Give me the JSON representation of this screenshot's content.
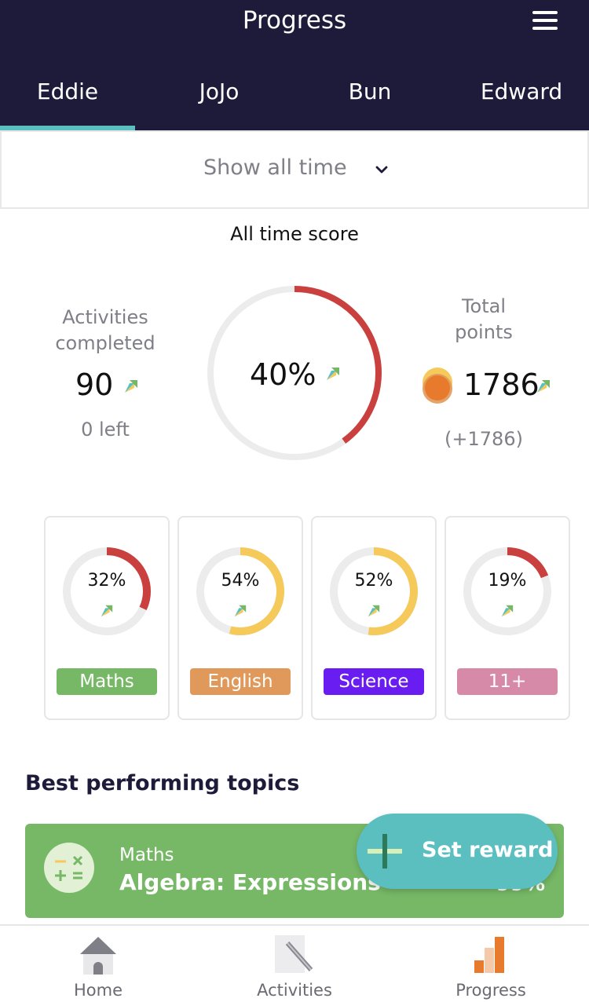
{
  "header": {
    "title": "Progress",
    "tabs": [
      "Eddie",
      "JoJo",
      "Bun",
      "Edward"
    ],
    "active_tab": "Eddie"
  },
  "filter": {
    "label": "Show all time"
  },
  "score": {
    "title": "All time score",
    "activities_label_line1": "Activities",
    "activities_label_line2": "completed",
    "activities_value": "90",
    "activities_left": "0 left",
    "overall_percent": "40%",
    "overall_fraction": 0.4,
    "points_label_line1": "Total",
    "points_label_line2": "points",
    "points_value": "1786",
    "points_change": "(+1786)"
  },
  "subjects": [
    {
      "name": "Maths",
      "percent": "32%",
      "fraction": 0.32,
      "ring_color": "#c9403e",
      "tag_color": "#76b866"
    },
    {
      "name": "English",
      "percent": "54%",
      "fraction": 0.54,
      "ring_color": "#f5c95a",
      "tag_color": "#e0995a"
    },
    {
      "name": "Science",
      "percent": "52%",
      "fraction": 0.52,
      "ring_color": "#f5c95a",
      "tag_color": "#6a1df0"
    },
    {
      "name": "11+",
      "percent": "19%",
      "fraction": 0.19,
      "ring_color": "#c9403e",
      "tag_color": "#d68aa8"
    }
  ],
  "best_topics": {
    "title": "Best performing topics",
    "items": [
      {
        "subject": "Maths",
        "topic": "Algebra: Expressions",
        "score": "99%"
      }
    ]
  },
  "fab": {
    "label": "Set reward"
  },
  "bottom_nav": [
    "Home",
    "Activities",
    "Progress"
  ],
  "colors": {
    "header_bg": "#1e1a3a",
    "accent": "#5bbfc0",
    "ring_track": "#ececec"
  }
}
